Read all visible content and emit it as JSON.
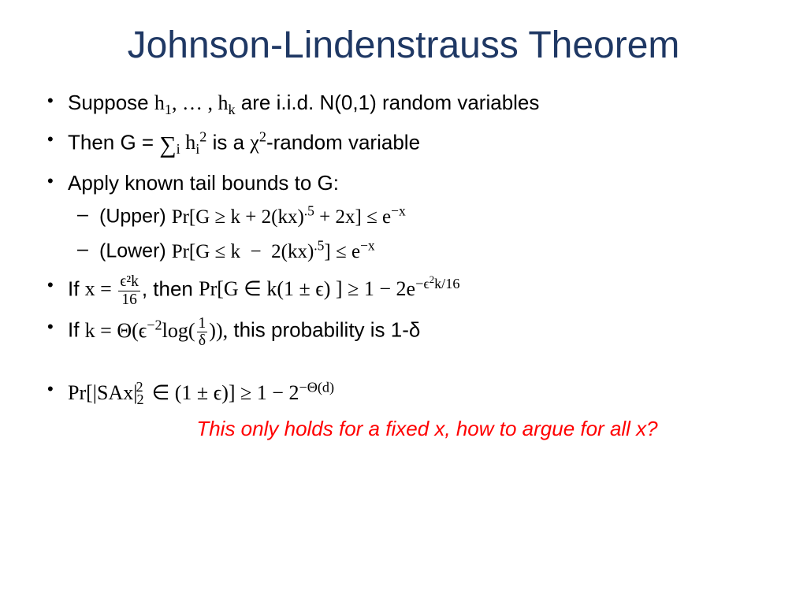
{
  "colors": {
    "title": "#1f3864",
    "body_text": "#000000",
    "note": "#ff0000",
    "background": "#ffffff"
  },
  "typography": {
    "title_fontsize": 48,
    "body_fontsize": 26,
    "sub_fontsize": 25,
    "note_fontsize": 26,
    "body_font": "Arial",
    "math_font": "Cambria Math"
  },
  "title": "Johnson-Lindenstrauss Theorem",
  "bullets": {
    "b1_pre": "Suppose ",
    "b1_math": "h₁, … , hₖ",
    "b1_post": " are i.i.d. N(0,1) random variables",
    "b2_pre": "Then G = ",
    "b2_math": "∑ᵢ hᵢ²",
    "b2_mid": " is a ",
    "b2_chi": "χ²",
    "b2_post": "-random variable",
    "b3": "Apply known tail bounds to G:",
    "b3a_label": "(Upper) ",
    "b3a_math": "Pr[G ≥ k + 2(kx)·⁵ + 2x] ≤ e⁻ˣ",
    "b3b_label": "(Lower) ",
    "b3b_math": "Pr[G ≤ k −  2(kx)·⁵] ≤ e⁻ˣ",
    "b4_pre": "If ",
    "b4_x": "x = ",
    "b4_frac_num": "ϵ²k",
    "b4_frac_den": "16",
    "b4_mid": ", then ",
    "b4_math": "Pr[G ∈ k(1 ± ϵ) ] ≥ 1 − 2e",
    "b4_exp": "−ϵ²k/16",
    "b5_pre": "If ",
    "b5_k": "k = Θ(ϵ⁻²log(",
    "b5_frac_num": "1",
    "b5_frac_den": "δ",
    "b5_close": ")),",
    "b5_post": " this probability is 1-δ",
    "b6_math_a": "Pr[|SAx|",
    "b6_sub": "2",
    "b6_sup": "2",
    "b6_math_b": " ∈ (1 ± ϵ)] ≥ 1 − 2",
    "b6_exp": "−Θ(d)"
  },
  "note": "This only holds for a fixed x, how to argue for all x?"
}
